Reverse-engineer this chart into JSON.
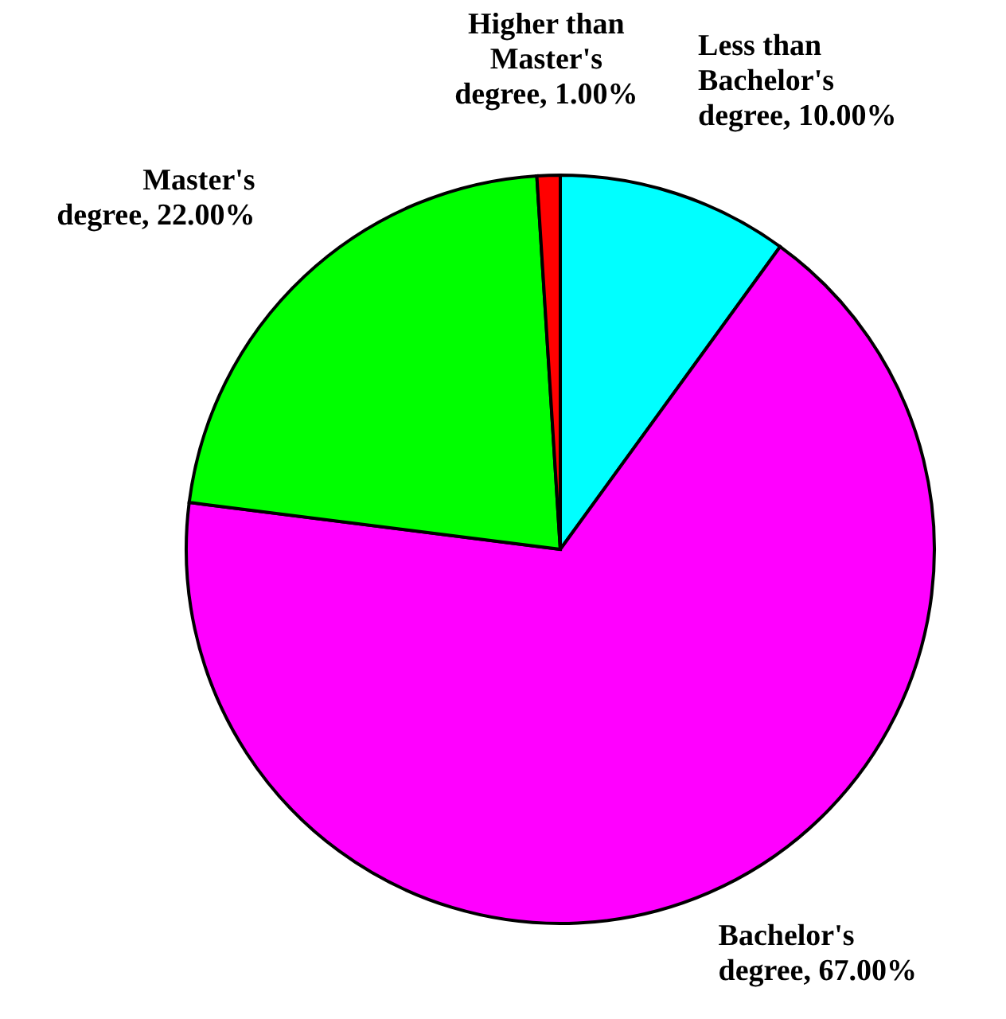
{
  "chart_data": {
    "type": "pie",
    "categories": [
      "Less than Bachelor's degree",
      "Bachelor's degree",
      "Master's degree",
      "Higher than Master's degree"
    ],
    "values": [
      10,
      67,
      22,
      1
    ],
    "value_labels": [
      "10.00%",
      "67.00%",
      "22.00%",
      "1.00%"
    ],
    "colors": [
      "#00ffff",
      "#ff00ff",
      "#00ff00",
      "#ff0000"
    ]
  }
}
